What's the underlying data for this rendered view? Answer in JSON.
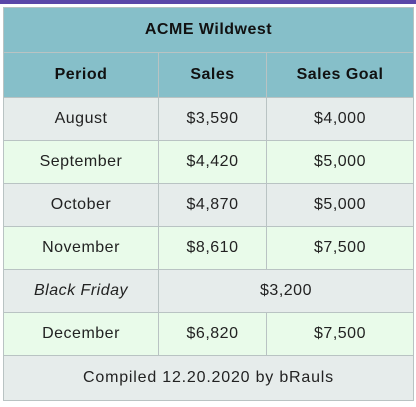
{
  "table": {
    "title": "ACME Wildwest",
    "headers": [
      "Period",
      "Sales",
      "Sales Goal"
    ],
    "rows": [
      {
        "period": "August",
        "sales": "$3,590",
        "goal": "$4,000"
      },
      {
        "period": "September",
        "sales": "$4,420",
        "goal": "$5,000"
      },
      {
        "period": "October",
        "sales": "$4,870",
        "goal": "$5,000"
      },
      {
        "period": "November",
        "sales": "$8,610",
        "goal": "$7,500"
      },
      {
        "period": "Black Friday",
        "merged_value": "$3,200"
      },
      {
        "period": "December",
        "sales": "$6,820",
        "goal": "$7,500"
      }
    ],
    "footer": "Compiled 12.20.2020 by bRauls"
  },
  "colors": {
    "top_bar": "#5b47a8",
    "header_bg": "#86bfc9",
    "row_gray": "#e6eceb",
    "row_green": "#e9fbea",
    "border": "#b9c3c3"
  }
}
